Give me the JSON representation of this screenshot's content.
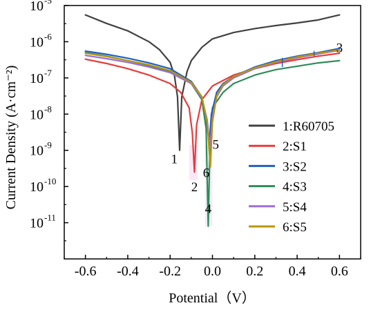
{
  "chart_data": {
    "type": "line",
    "xlabel": "Potential（V）",
    "ylabel": "Current Density (A·cm⁻²)",
    "xlim": [
      -0.7,
      0.7
    ],
    "ylim": [
      1e-12,
      1e-05
    ],
    "y_scale": "log",
    "x_ticks": [
      "-0.6",
      "-0.4",
      "-0.2",
      "0.0",
      "0.2",
      "0.4",
      "0.6"
    ],
    "y_ticks": [
      {
        "base": "10",
        "exp": "-5",
        "value": 1e-05
      },
      {
        "base": "10",
        "exp": "-6",
        "value": 1e-06
      },
      {
        "base": "10",
        "exp": "-7",
        "value": 1e-07
      },
      {
        "base": "10",
        "exp": "-8",
        "value": 1e-08
      },
      {
        "base": "10",
        "exp": "-9",
        "value": 1e-09
      },
      {
        "base": "10",
        "exp": "-10",
        "value": 1e-10
      },
      {
        "base": "10",
        "exp": "-11",
        "value": 1e-11
      }
    ],
    "legend_position": "right",
    "series": [
      {
        "name": "1:R60705",
        "label": "1",
        "color": "#404040",
        "ecorr": -0.155,
        "min_i": 1e-09,
        "x": [
          -0.6,
          -0.5,
          -0.4,
          -0.3,
          -0.25,
          -0.2,
          -0.18,
          -0.165,
          -0.155,
          -0.145,
          -0.12,
          -0.1,
          -0.05,
          0.0,
          0.1,
          0.2,
          0.3,
          0.4,
          0.5,
          0.6
        ],
        "y": [
          5.5e-06,
          3.2e-06,
          2e-06,
          1e-06,
          6e-07,
          2.7e-07,
          1.2e-07,
          3e-08,
          1e-09,
          3e-08,
          1.5e-07,
          3e-07,
          7e-07,
          1.2e-06,
          1.8e-06,
          2.3e-06,
          2.8e-06,
          3.3e-06,
          4e-06,
          5.5e-06
        ]
      },
      {
        "name": "2:S1",
        "label": "2",
        "color": "#e83a3a",
        "ecorr": -0.085,
        "min_i": 2.5e-10,
        "x": [
          -0.6,
          -0.5,
          -0.4,
          -0.3,
          -0.2,
          -0.15,
          -0.11,
          -0.095,
          -0.085,
          -0.075,
          -0.05,
          0.0,
          0.1,
          0.2,
          0.3,
          0.4,
          0.5,
          0.6
        ],
        "y": [
          3.3e-07,
          2.5e-07,
          1.8e-07,
          1.2e-07,
          7e-08,
          4e-08,
          1.5e-08,
          3e-09,
          2.5e-10,
          5e-09,
          2.5e-08,
          6e-08,
          1.2e-07,
          1.8e-07,
          2.5e-07,
          3.2e-07,
          4e-07,
          4.8e-07
        ]
      },
      {
        "name": "3:S2",
        "label": "3",
        "color": "#1f5fc4",
        "ecorr": -0.015,
        "min_i": 1.5e-09,
        "x": [
          -0.6,
          -0.5,
          -0.4,
          -0.3,
          -0.2,
          -0.1,
          -0.05,
          -0.03,
          -0.015,
          -0.005,
          0.02,
          0.05,
          0.1,
          0.2,
          0.3,
          0.4,
          0.5,
          0.6
        ],
        "y": [
          5.5e-07,
          4.5e-07,
          3.5e-07,
          2.6e-07,
          1.8e-07,
          8e-08,
          3e-08,
          8e-09,
          1.5e-09,
          1e-08,
          4e-08,
          7e-08,
          1.1e-07,
          2e-07,
          3e-07,
          4e-07,
          5e-07,
          6.5e-07
        ]
      },
      {
        "name": "4:S3",
        "label": "4",
        "color": "#2e8b57",
        "ecorr": -0.02,
        "min_i": 8e-12,
        "x": [
          -0.6,
          -0.5,
          -0.4,
          -0.3,
          -0.2,
          -0.1,
          -0.05,
          -0.03,
          -0.02,
          -0.01,
          0.0,
          0.05,
          0.1,
          0.2,
          0.3,
          0.4,
          0.5,
          0.6
        ],
        "y": [
          5e-07,
          4e-07,
          3e-07,
          2.2e-07,
          1.5e-07,
          7e-08,
          2.5e-08,
          4e-09,
          8e-12,
          4e-09,
          1.5e-08,
          4e-08,
          7e-08,
          1.2e-07,
          1.7e-07,
          2.1e-07,
          2.6e-07,
          3e-07
        ]
      },
      {
        "name": "5:S4",
        "label": "5",
        "color": "#9b6fd6",
        "ecorr": -0.012,
        "min_i": 1.2e-09,
        "x": [
          -0.6,
          -0.5,
          -0.4,
          -0.3,
          -0.2,
          -0.1,
          -0.05,
          -0.025,
          -0.012,
          0.0,
          0.02,
          0.05,
          0.1,
          0.2,
          0.3,
          0.4,
          0.5,
          0.6
        ],
        "y": [
          4.2e-07,
          3.4e-07,
          2.7e-07,
          2e-07,
          1.4e-07,
          7e-08,
          2.8e-08,
          7e-09,
          1.2e-09,
          8e-09,
          3e-08,
          6e-08,
          1e-07,
          1.8e-07,
          2.7e-07,
          3.6e-07,
          4.6e-07,
          5.8e-07
        ]
      },
      {
        "name": "6:S5",
        "label": "6",
        "color": "#b8960b",
        "ecorr": -0.01,
        "min_i": 3.5e-10,
        "x": [
          -0.6,
          -0.5,
          -0.4,
          -0.3,
          -0.2,
          -0.1,
          -0.05,
          -0.025,
          -0.01,
          0.0,
          0.02,
          0.05,
          0.1,
          0.2,
          0.3,
          0.4,
          0.5,
          0.6
        ],
        "y": [
          4.8e-07,
          3.9e-07,
          3e-07,
          2.3e-07,
          1.6e-07,
          7.5e-08,
          3e-08,
          6e-09,
          3.5e-10,
          6e-09,
          3.2e-08,
          6.5e-08,
          1.1e-07,
          1.9e-07,
          2.8e-07,
          3.8e-07,
          4.8e-07,
          6e-07
        ]
      }
    ]
  }
}
